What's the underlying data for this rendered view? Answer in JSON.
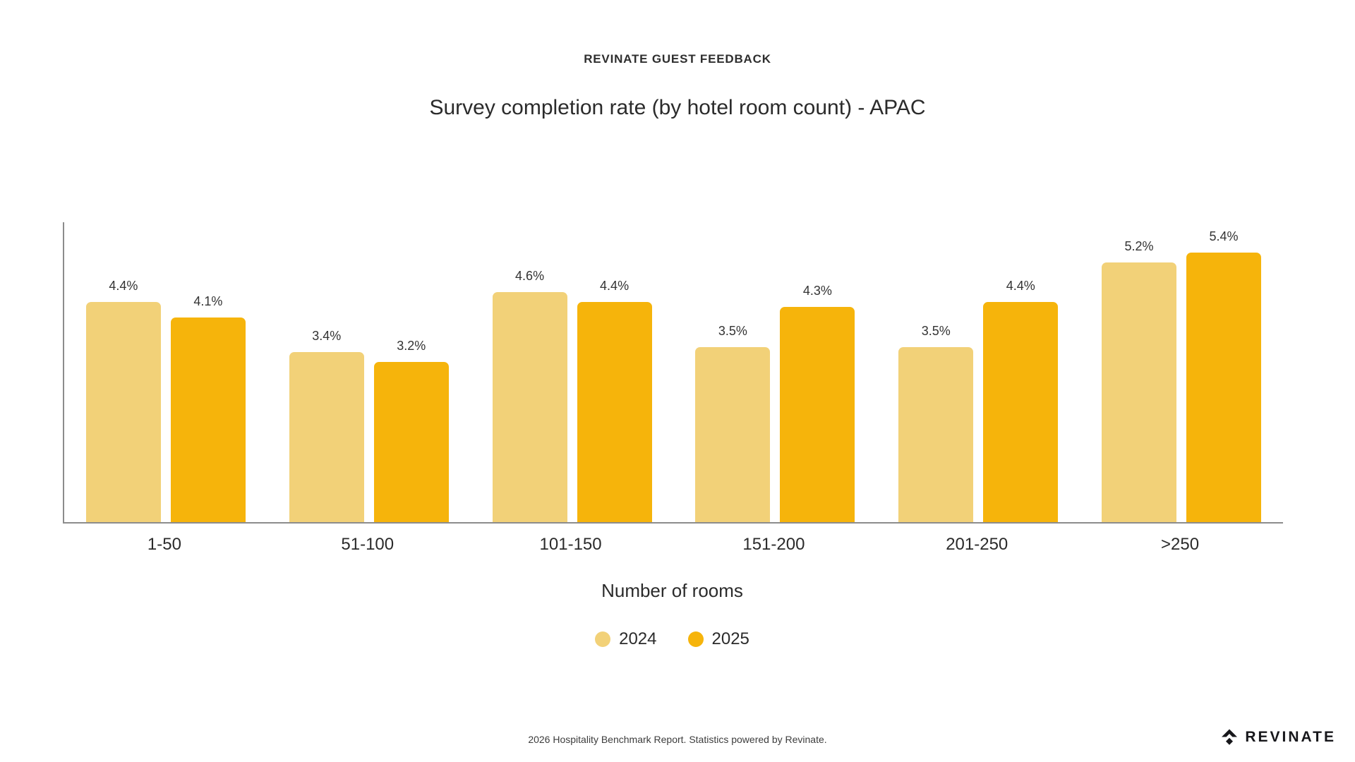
{
  "header": {
    "eyebrow": "REVINATE GUEST FEEDBACK",
    "title": "Survey completion rate (by hotel room count) - APAC"
  },
  "chart_data": {
    "type": "bar",
    "title": "Survey completion rate (by hotel room count) - APAC",
    "categories": [
      "1-50",
      "51-100",
      "101-150",
      "151-200",
      "201-250",
      ">250"
    ],
    "series": [
      {
        "name": "2024",
        "color": "#F2D178",
        "values": [
          4.4,
          3.4,
          4.6,
          3.5,
          3.5,
          5.2
        ]
      },
      {
        "name": "2025",
        "color": "#F6B40B",
        "values": [
          4.1,
          3.2,
          4.4,
          4.3,
          4.4,
          5.4
        ]
      }
    ],
    "value_suffix": "%",
    "xlabel": "Number of rooms",
    "ylabel": "",
    "ylim": [
      0,
      6
    ],
    "grid": false,
    "legend_position": "bottom",
    "bar_labels": [
      [
        "4.4%",
        "3.4%",
        "4.6%",
        "3.5%",
        "3.5%",
        "5.2%"
      ],
      [
        "4.1%",
        "3.2%",
        "4.4%",
        "4.3%",
        "4.4%",
        "5.4%"
      ]
    ]
  },
  "footer": {
    "note": "2026 Hospitality Benchmark Report. Statistics powered by Revinate.",
    "brand": "REVINATE"
  },
  "colors": {
    "axis": "#8C8C8C",
    "text_dark": "#2E2E2E",
    "series_2024": "#F2D178",
    "series_2025": "#F6B40B"
  }
}
